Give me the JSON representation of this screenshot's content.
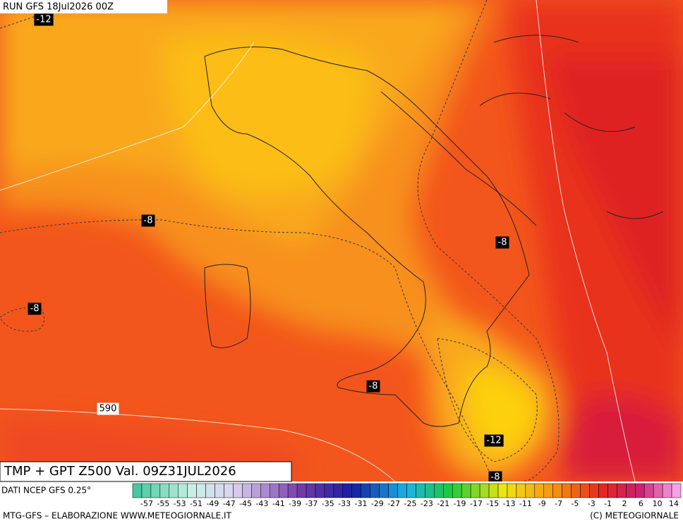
{
  "header": {
    "run": "RUN GFS 18Jul2026 00Z"
  },
  "map": {
    "contour_labels": [
      {
        "text": "-12"
      },
      {
        "text": "-8"
      },
      {
        "text": "-8"
      },
      {
        "text": "-8"
      },
      {
        "text": "-8"
      },
      {
        "text": "590"
      },
      {
        "text": "-12"
      },
      {
        "text": "-8"
      }
    ]
  },
  "footer": {
    "title": "TMP + GPT Z500 Val. 09Z31JUL2026",
    "source": "DATI NCEP GFS 0.25°",
    "credit_left": "MTG-GFS – ELABORAZIONE WWW.METEOGIORNALE.IT",
    "credit_right": "(C) METEOGIORNALE"
  },
  "legend": {
    "labels": [
      "-57",
      "-55",
      "-53",
      "-51",
      "-49",
      "-47",
      "-45",
      "-43",
      "-41",
      "-39",
      "-37",
      "-35",
      "-33",
      "-31",
      "-29",
      "-27",
      "-25",
      "-23",
      "-21",
      "-19",
      "-17",
      "-15",
      "-13",
      "-11",
      "-9",
      "-7",
      "-5",
      "-3",
      "-1",
      "2",
      "6",
      "10",
      "14"
    ]
  }
}
